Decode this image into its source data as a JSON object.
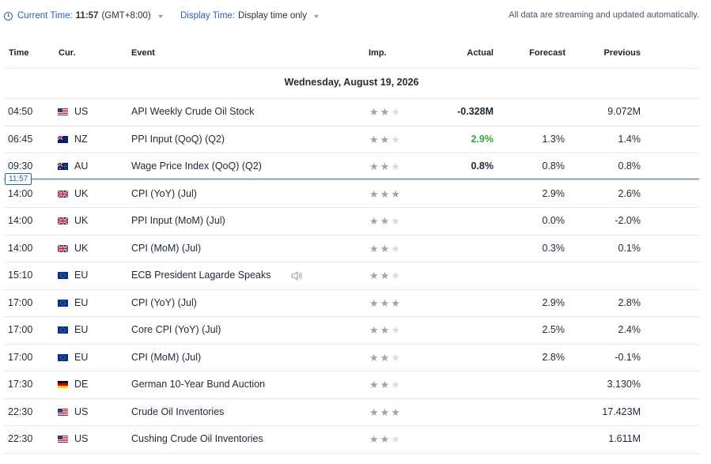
{
  "topbar": {
    "current_time_label": "Current Time:",
    "current_time_value": "11:57",
    "timezone": "(GMT+8:00)",
    "display_time_label": "Display Time:",
    "display_time_value": "Display time only",
    "streaming_note": "All data are streaming and updated automatically."
  },
  "columns": {
    "time": "Time",
    "currency": "Cur.",
    "event": "Event",
    "importance": "Imp.",
    "actual": "Actual",
    "forecast": "Forecast",
    "previous": "Previous"
  },
  "day_header": "Wednesday, August 19, 2026",
  "now_marker": "11:57",
  "colors": {
    "accent": "#2a63b0",
    "actual_positive": "#2ea93b",
    "star_on": "#9ca3af",
    "star_off": "#d9dde2"
  },
  "events": [
    {
      "time": "04:50",
      "flag": "us-flag",
      "cur": "US",
      "event": "API Weekly Crude Oil Stock",
      "importance": 2,
      "actual": "-0.328M",
      "actual_color": "#1f2937",
      "forecast": "",
      "previous": "9.072M"
    },
    {
      "time": "06:45",
      "flag": "nz-flag",
      "cur": "NZ",
      "event": "PPI Input (QoQ) (Q2)",
      "importance": 2,
      "actual": "2.9%",
      "actual_color": "#2ea93b",
      "forecast": "1.3%",
      "previous": "1.4%"
    },
    {
      "time": "09:30",
      "flag": "au-flag",
      "cur": "AU",
      "event": "Wage Price Index (QoQ) (Q2)",
      "importance": 2,
      "actual": "0.8%",
      "actual_color": "#1f2937",
      "forecast": "0.8%",
      "previous": "0.8%"
    },
    {
      "time": "14:00",
      "flag": "uk-flag",
      "cur": "UK",
      "event": "CPI (YoY) (Jul)",
      "importance": 3,
      "actual": "",
      "actual_color": "#1f2937",
      "forecast": "2.9%",
      "previous": "2.6%"
    },
    {
      "time": "14:00",
      "flag": "uk-flag",
      "cur": "UK",
      "event": "PPI Input (MoM) (Jul)",
      "importance": 2,
      "actual": "",
      "actual_color": "#1f2937",
      "forecast": "0.0%",
      "previous": "-2.0%"
    },
    {
      "time": "14:00",
      "flag": "uk-flag",
      "cur": "UK",
      "event": "CPI (MoM) (Jul)",
      "importance": 2,
      "actual": "",
      "actual_color": "#1f2937",
      "forecast": "0.3%",
      "previous": "0.1%"
    },
    {
      "time": "15:10",
      "flag": "eu-flag",
      "cur": "EU",
      "event": "ECB President Lagarde Speaks",
      "importance": 2,
      "actual": "",
      "actual_color": "#1f2937",
      "forecast": "",
      "previous": "",
      "speech": true
    },
    {
      "time": "17:00",
      "flag": "eu-flag",
      "cur": "EU",
      "event": "CPI (YoY) (Jul)",
      "importance": 3,
      "actual": "",
      "actual_color": "#1f2937",
      "forecast": "2.9%",
      "previous": "2.8%"
    },
    {
      "time": "17:00",
      "flag": "eu-flag",
      "cur": "EU",
      "event": "Core CPI (YoY) (Jul)",
      "importance": 2,
      "actual": "",
      "actual_color": "#1f2937",
      "forecast": "2.5%",
      "previous": "2.4%"
    },
    {
      "time": "17:00",
      "flag": "eu-flag",
      "cur": "EU",
      "event": "CPI (MoM) (Jul)",
      "importance": 2,
      "actual": "",
      "actual_color": "#1f2937",
      "forecast": "2.8%",
      "previous": "-0.1%"
    },
    {
      "time": "17:30",
      "flag": "de-flag",
      "cur": "DE",
      "event": "German 10-Year Bund Auction",
      "importance": 2,
      "actual": "",
      "actual_color": "#1f2937",
      "forecast": "",
      "previous": "3.130%"
    },
    {
      "time": "22:30",
      "flag": "us-flag",
      "cur": "US",
      "event": "Crude Oil Inventories",
      "importance": 3,
      "actual": "",
      "actual_color": "#1f2937",
      "forecast": "",
      "previous": "17.423M"
    },
    {
      "time": "22:30",
      "flag": "us-flag",
      "cur": "US",
      "event": "Cushing Crude Oil Inventories",
      "importance": 2,
      "actual": "",
      "actual_color": "#1f2937",
      "forecast": "",
      "previous": "1.611M"
    }
  ]
}
